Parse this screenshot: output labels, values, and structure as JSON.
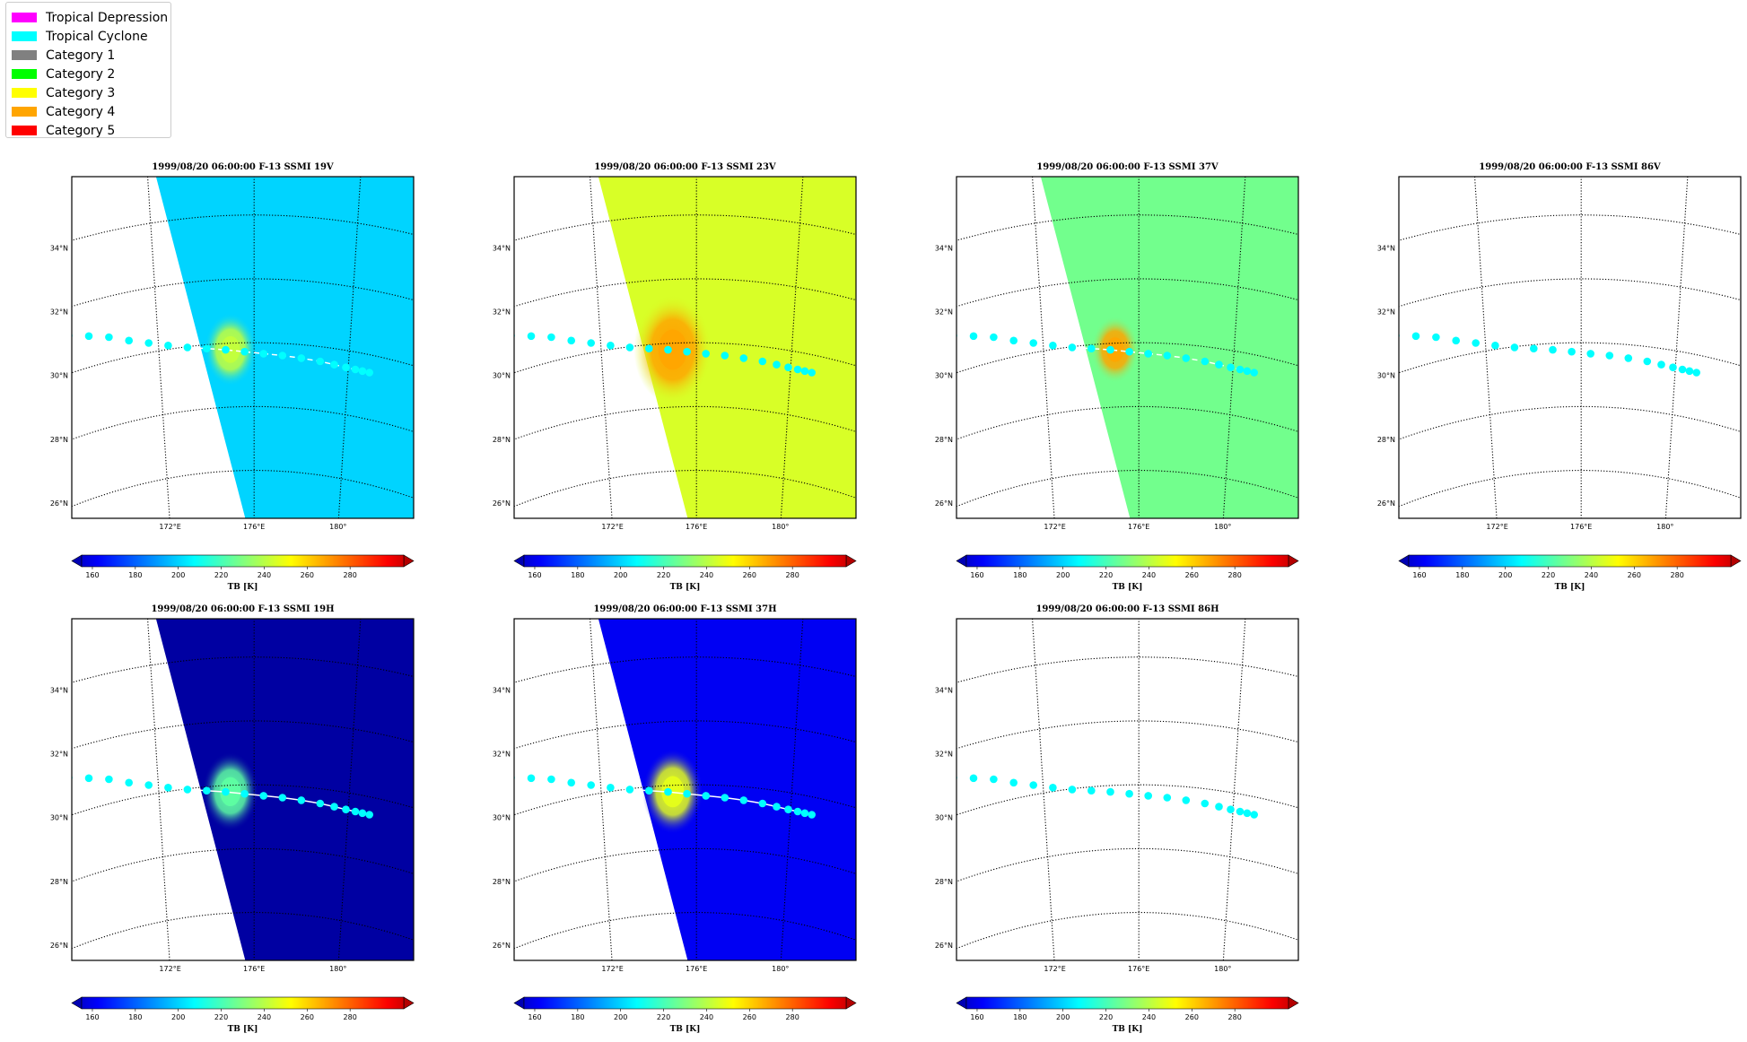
{
  "legend": {
    "items": [
      {
        "label": "Tropical Depression",
        "color": "#ff00ff"
      },
      {
        "label": "Tropical Cyclone",
        "color": "#00ffff"
      },
      {
        "label": "Category 1",
        "color": "#808080"
      },
      {
        "label": "Category 2",
        "color": "#00ff00"
      },
      {
        "label": "Category 3",
        "color": "#ffff00"
      },
      {
        "label": "Category 4",
        "color": "#ffa500"
      },
      {
        "label": "Category 5",
        "color": "#ff0000"
      }
    ]
  },
  "track_color": "#00ffff",
  "colorbar": {
    "label": "TB [K]",
    "ticks": [
      160,
      180,
      200,
      220,
      240,
      260,
      280
    ],
    "range": [
      155,
      305
    ],
    "colormap": "jet"
  },
  "map_axes": {
    "lon_range": [
      168,
      183
    ],
    "lat_range": [
      24.5,
      35.2
    ],
    "lat_ticks": [
      26,
      28,
      30,
      32,
      34
    ],
    "lat_tick_labels": [
      "26°N",
      "28°N",
      "30°N",
      "32°N",
      "34°N"
    ],
    "lon_ticks": [
      172,
      176,
      180
    ],
    "lon_tick_labels": [
      "172°E",
      "176°E",
      "180°"
    ]
  },
  "chart_data": [
    {
      "type": "heatmap",
      "title": "1999/08/20 06:00:00  F-13 SSMI 19V",
      "channel": "19V",
      "has_swath": true,
      "background_tb": 205,
      "eye_tb": 240,
      "eye_radius_deg": 0.6,
      "track_line": "dashed"
    },
    {
      "type": "heatmap",
      "title": "1999/08/20 06:00:00  F-13 SSMI 23V",
      "channel": "23V",
      "has_swath": true,
      "background_tb": 243,
      "eye_tb": 262,
      "eye_radius_deg": 0.9,
      "track_line": "none"
    },
    {
      "type": "heatmap",
      "title": "1999/08/20 06:00:00  F-13 SSMI 37V",
      "channel": "37V",
      "has_swath": true,
      "background_tb": 228,
      "eye_tb": 262,
      "eye_radius_deg": 0.55,
      "track_line": "dashed"
    },
    {
      "type": "heatmap",
      "title": "1999/08/20 06:00:00  F-13 SSMI 86V",
      "channel": "86V",
      "has_swath": false,
      "track_line": "none"
    },
    {
      "type": "heatmap",
      "title": "1999/08/20 06:00:00  F-13 SSMI 19H",
      "channel": "19H",
      "has_swath": true,
      "background_tb": 160,
      "eye_tb": 225,
      "eye_radius_deg": 0.65,
      "track_line": "solid"
    },
    {
      "type": "heatmap",
      "title": "1999/08/20 06:00:00  F-13 SSMI 37H",
      "channel": "37H",
      "has_swath": true,
      "background_tb": 172,
      "eye_tb": 245,
      "eye_radius_deg": 0.7,
      "track_line": "solid"
    },
    {
      "type": "heatmap",
      "title": "1999/08/20 06:00:00  F-13 SSMI 86H",
      "channel": "86H",
      "has_swath": false,
      "track_line": "none"
    }
  ],
  "track": {
    "category": "Tropical Cyclone",
    "points": [
      {
        "lon": 168.4,
        "lat": 31.15
      },
      {
        "lon": 169.2,
        "lat": 30.95
      },
      {
        "lon": 170.0,
        "lat": 30.75
      },
      {
        "lon": 170.8,
        "lat": 30.5
      },
      {
        "lon": 171.6,
        "lat": 30.3
      },
      {
        "lon": 172.4,
        "lat": 30.12
      },
      {
        "lon": 173.2,
        "lat": 29.98
      },
      {
        "lon": 174.0,
        "lat": 29.88
      },
      {
        "lon": 174.8,
        "lat": 29.8
      },
      {
        "lon": 175.6,
        "lat": 29.72
      },
      {
        "lon": 176.4,
        "lat": 29.66
      },
      {
        "lon": 177.2,
        "lat": 29.62
      },
      {
        "lon": 178.0,
        "lat": 29.58
      },
      {
        "lon": 178.8,
        "lat": 29.54
      },
      {
        "lon": 179.4,
        "lat": 29.5
      },
      {
        "lon": 179.9,
        "lat": 29.47
      },
      {
        "lon": 180.3,
        "lat": 29.46
      },
      {
        "lon": 180.6,
        "lat": 29.45
      },
      {
        "lon": 180.9,
        "lat": 29.45
      }
    ]
  }
}
